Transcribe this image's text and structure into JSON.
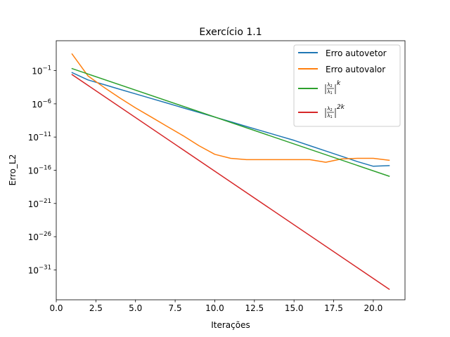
{
  "chart_data": {
    "type": "line",
    "title": "Exercício 1.1",
    "xlabel": "Iterações",
    "ylabel": "Erro_L2",
    "xlim": [
      0,
      22
    ],
    "ylim_log10": [
      -35.5,
      3.5
    ],
    "yscale": "log",
    "grid": false,
    "legend_position": "top-right",
    "x_ticks": [
      0.0,
      2.5,
      5.0,
      7.5,
      10.0,
      12.5,
      15.0,
      17.5,
      20.0
    ],
    "x_tick_labels": [
      "0.0",
      "2.5",
      "5.0",
      "7.5",
      "10.0",
      "12.5",
      "15.0",
      "17.5",
      "20.0"
    ],
    "y_ticks_log10": [
      -1,
      -6,
      -11,
      -16,
      -21,
      -26,
      -31
    ],
    "y_tick_mantissa": "10",
    "y_tick_exponents": [
      "−1",
      "−6",
      "−11",
      "−16",
      "−21",
      "−26",
      "−31"
    ],
    "series": [
      {
        "name": "Erro autovetor",
        "color": "#1f77b4",
        "x": [
          1,
          2,
          3,
          4,
          5,
          6,
          7,
          8,
          9,
          10,
          11,
          12,
          13,
          14,
          15,
          16,
          17,
          18,
          19,
          20,
          21
        ],
        "log10_y": [
          -1.3,
          -2.4,
          -3.1,
          -3.8,
          -4.5,
          -5.2,
          -5.9,
          -6.6,
          -7.3,
          -8.0,
          -8.7,
          -9.4,
          -10.1,
          -10.8,
          -11.5,
          -12.3,
          -13.1,
          -13.9,
          -14.7,
          -15.4,
          -15.3
        ]
      },
      {
        "name": "Erro autovalor",
        "color": "#ff7f0e",
        "x": [
          1,
          2,
          3,
          4,
          5,
          6,
          7,
          8,
          9,
          10,
          11,
          12,
          13,
          14,
          15,
          16,
          17,
          18,
          19,
          20,
          21
        ],
        "log10_y": [
          1.5,
          -1.8,
          -3.5,
          -5.1,
          -6.6,
          -8.0,
          -9.4,
          -10.8,
          -12.3,
          -13.6,
          -14.2,
          -14.4,
          -14.4,
          -14.4,
          -14.4,
          -14.4,
          -14.8,
          -14.3,
          -14.2,
          -14.2,
          -14.5
        ]
      },
      {
        "name": "|λ2/λ1|^k",
        "color": "#2ca02c",
        "x": [
          1,
          21
        ],
        "log10_y": [
          -0.7,
          -16.9
        ]
      },
      {
        "name": "|λ2/λ1|^2k",
        "color": "#d62728",
        "x": [
          1,
          21
        ],
        "log10_y": [
          -1.6,
          -33.9
        ]
      }
    ]
  }
}
